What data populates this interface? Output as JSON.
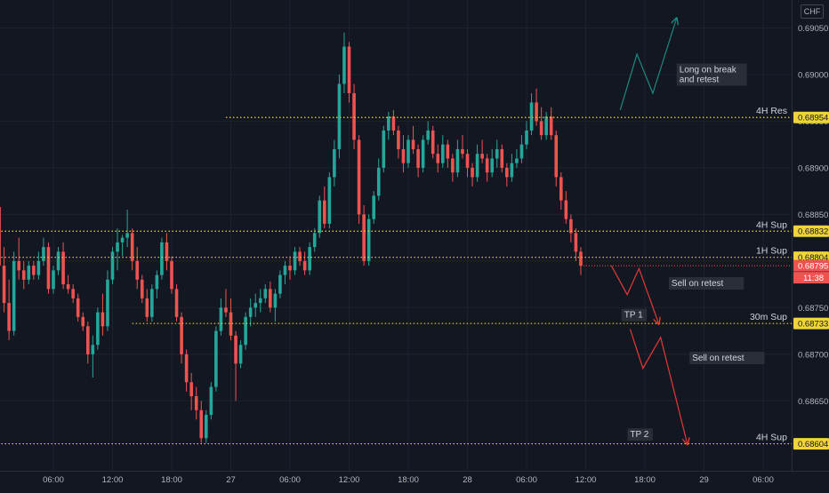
{
  "currency": "CHF",
  "chart_data": {
    "type": "candlestick",
    "symbol_currency": "CHF",
    "ylim": [
      0.68575,
      0.6908
    ],
    "price_ticks": [
      "0.69050",
      "0.69000",
      "0.68950",
      "0.68900",
      "0.68850",
      "0.68800",
      "0.68750",
      "0.68700",
      "0.68650"
    ],
    "time_ticks": [
      {
        "label": "06:00",
        "h": 6
      },
      {
        "label": "12:00",
        "h": 12
      },
      {
        "label": "18:00",
        "h": 18
      },
      {
        "label": "27",
        "h": 24
      },
      {
        "label": "06:00",
        "h": 30
      },
      {
        "label": "12:00",
        "h": 36
      },
      {
        "label": "18:00",
        "h": 42
      },
      {
        "label": "28",
        "h": 48
      },
      {
        "label": "06:00",
        "h": 54
      },
      {
        "label": "12:00",
        "h": 60
      },
      {
        "label": "18:00",
        "h": 66
      },
      {
        "label": "29",
        "h": 72
      },
      {
        "label": "06:00",
        "h": 78
      }
    ],
    "levels": [
      {
        "label": "4H Res",
        "price": 0.68954,
        "tag": "0.68954",
        "from_h": 23.5
      },
      {
        "label": "4H Sup",
        "price": 0.68832,
        "tag": "0.68832",
        "from_h": 0
      },
      {
        "label": "1H Sup",
        "price": 0.68804,
        "tag": "0.68804",
        "from_h": 0
      },
      {
        "label": "30m Sup",
        "price": 0.68733,
        "tag": "0.68733",
        "from_h": 14
      },
      {
        "label": "4H Sup",
        "price": 0.68604,
        "tag": "0.68604",
        "from_h": 0
      }
    ],
    "last_price": {
      "value": "0.68795",
      "price": 0.68795,
      "countdown": "11:38"
    },
    "annotations": [
      {
        "text": [
          "Long on break",
          "and retest"
        ],
        "h": 69.5,
        "price": 0.69
      },
      {
        "text": [
          "Sell on retest"
        ],
        "h": 68.7,
        "price": 0.68776
      },
      {
        "text": [
          "TP 1"
        ],
        "h": 63.9,
        "price": 0.68742
      },
      {
        "text": [
          "Sell on retest"
        ],
        "h": 70.8,
        "price": 0.68696
      },
      {
        "text": [
          "TP 2"
        ],
        "h": 64.5,
        "price": 0.68614
      }
    ],
    "paths": [
      {
        "color": "#1d8a80",
        "arrow": true,
        "points": [
          [
            63.5,
            0.68962
          ],
          [
            65.2,
            0.69022
          ],
          [
            66.8,
            0.6898
          ],
          [
            69.2,
            0.6906
          ]
        ]
      },
      {
        "color": "#e53935",
        "arrow": true,
        "points": [
          [
            62.6,
            0.68795
          ],
          [
            64.2,
            0.68764
          ],
          [
            65.4,
            0.68792
          ],
          [
            67.4,
            0.68733
          ]
        ]
      },
      {
        "color": "#e53935",
        "arrow": true,
        "points": [
          [
            64.5,
            0.68727
          ],
          [
            65.8,
            0.68685
          ],
          [
            67.6,
            0.68718
          ],
          [
            70.3,
            0.68604
          ]
        ]
      }
    ],
    "candles_start_h": 0.5,
    "candles_step_h": 0.5,
    "candles": [
      [
        0.68858,
        0.68862,
        0.68785,
        0.68795
      ],
      [
        0.68795,
        0.68815,
        0.68745,
        0.68755
      ],
      [
        0.68755,
        0.6878,
        0.68715,
        0.68725
      ],
      [
        0.68725,
        0.6881,
        0.6872,
        0.688
      ],
      [
        0.688,
        0.68825,
        0.6878,
        0.6879
      ],
      [
        0.6879,
        0.688,
        0.6877,
        0.6878
      ],
      [
        0.6878,
        0.688,
        0.68775,
        0.68795
      ],
      [
        0.68795,
        0.688,
        0.6878,
        0.68785
      ],
      [
        0.68785,
        0.6881,
        0.6878,
        0.688
      ],
      [
        0.688,
        0.68825,
        0.68795,
        0.68815
      ],
      [
        0.68815,
        0.6882,
        0.68765,
        0.6877
      ],
      [
        0.6877,
        0.68795,
        0.68765,
        0.6879
      ],
      [
        0.6879,
        0.68815,
        0.68785,
        0.6881
      ],
      [
        0.6881,
        0.6882,
        0.6877,
        0.68775
      ],
      [
        0.68775,
        0.68785,
        0.68765,
        0.6877
      ],
      [
        0.6877,
        0.68775,
        0.68755,
        0.6876
      ],
      [
        0.6876,
        0.68765,
        0.68735,
        0.6874
      ],
      [
        0.6874,
        0.68745,
        0.68725,
        0.6873
      ],
      [
        0.6873,
        0.68735,
        0.6869,
        0.687
      ],
      [
        0.687,
        0.6872,
        0.68675,
        0.6871
      ],
      [
        0.6871,
        0.6875,
        0.68705,
        0.68745
      ],
      [
        0.68745,
        0.68765,
        0.6872,
        0.6873
      ],
      [
        0.6873,
        0.6879,
        0.68725,
        0.6878
      ],
      [
        0.6878,
        0.68815,
        0.68775,
        0.6881
      ],
      [
        0.6881,
        0.68835,
        0.6879,
        0.6882
      ],
      [
        0.6882,
        0.68828,
        0.68805,
        0.68825
      ],
      [
        0.68825,
        0.68855,
        0.68815,
        0.6883
      ],
      [
        0.6883,
        0.68835,
        0.6879,
        0.688
      ],
      [
        0.688,
        0.68815,
        0.6877,
        0.6878
      ],
      [
        0.6878,
        0.68785,
        0.68755,
        0.6876
      ],
      [
        0.6876,
        0.6877,
        0.68735,
        0.6874
      ],
      [
        0.6874,
        0.68775,
        0.68735,
        0.6877
      ],
      [
        0.6877,
        0.6879,
        0.6876,
        0.68785
      ],
      [
        0.68785,
        0.68825,
        0.6878,
        0.6882
      ],
      [
        0.6882,
        0.6883,
        0.6879,
        0.688
      ],
      [
        0.688,
        0.68805,
        0.68765,
        0.6877
      ],
      [
        0.6877,
        0.68775,
        0.68735,
        0.6874
      ],
      [
        0.6874,
        0.68745,
        0.6869,
        0.687
      ],
      [
        0.687,
        0.68705,
        0.6866,
        0.6867
      ],
      [
        0.6867,
        0.6868,
        0.6864,
        0.68655
      ],
      [
        0.68655,
        0.68665,
        0.6863,
        0.6864
      ],
      [
        0.6864,
        0.6865,
        0.68605,
        0.6861
      ],
      [
        0.6861,
        0.6864,
        0.68605,
        0.68635
      ],
      [
        0.68635,
        0.6867,
        0.6863,
        0.68665
      ],
      [
        0.68665,
        0.6873,
        0.6866,
        0.68725
      ],
      [
        0.68725,
        0.6876,
        0.6872,
        0.6875
      ],
      [
        0.6875,
        0.6877,
        0.6874,
        0.68745
      ],
      [
        0.68745,
        0.6876,
        0.68715,
        0.6872
      ],
      [
        0.6872,
        0.68725,
        0.6865,
        0.6869
      ],
      [
        0.6869,
        0.68715,
        0.68685,
        0.6871
      ],
      [
        0.6871,
        0.68745,
        0.68705,
        0.6874
      ],
      [
        0.6874,
        0.6876,
        0.6873,
        0.6875
      ],
      [
        0.6875,
        0.68765,
        0.6874,
        0.68755
      ],
      [
        0.68755,
        0.6877,
        0.68745,
        0.6876
      ],
      [
        0.6876,
        0.68775,
        0.68755,
        0.6877
      ],
      [
        0.6877,
        0.68778,
        0.68745,
        0.6875
      ],
      [
        0.6875,
        0.6877,
        0.68735,
        0.68765
      ],
      [
        0.68765,
        0.6879,
        0.6876,
        0.68785
      ],
      [
        0.68785,
        0.688,
        0.68775,
        0.68795
      ],
      [
        0.68795,
        0.68805,
        0.6878,
        0.6879
      ],
      [
        0.6879,
        0.68815,
        0.68785,
        0.6881
      ],
      [
        0.6881,
        0.68815,
        0.68795,
        0.688
      ],
      [
        0.688,
        0.6881,
        0.68785,
        0.6879
      ],
      [
        0.6879,
        0.6882,
        0.68785,
        0.68815
      ],
      [
        0.68815,
        0.68835,
        0.6881,
        0.6883
      ],
      [
        0.6883,
        0.6887,
        0.68825,
        0.68865
      ],
      [
        0.68865,
        0.6888,
        0.68835,
        0.6884
      ],
      [
        0.6884,
        0.68895,
        0.68835,
        0.6889
      ],
      [
        0.6889,
        0.6893,
        0.6888,
        0.6892
      ],
      [
        0.6892,
        0.69,
        0.6891,
        0.6899
      ],
      [
        0.6899,
        0.69045,
        0.6898,
        0.6903
      ],
      [
        0.6903,
        0.69035,
        0.6897,
        0.6898
      ],
      [
        0.6898,
        0.6899,
        0.6892,
        0.6893
      ],
      [
        0.6893,
        0.68935,
        0.6884,
        0.6885
      ],
      [
        0.6885,
        0.6886,
        0.68795,
        0.688
      ],
      [
        0.688,
        0.6885,
        0.68795,
        0.68845
      ],
      [
        0.68845,
        0.68875,
        0.6884,
        0.6887
      ],
      [
        0.6887,
        0.6891,
        0.68865,
        0.689
      ],
      [
        0.689,
        0.68945,
        0.68895,
        0.6894
      ],
      [
        0.6894,
        0.6896,
        0.6893,
        0.68955
      ],
      [
        0.68955,
        0.68962,
        0.68935,
        0.6894
      ],
      [
        0.6894,
        0.68945,
        0.6891,
        0.6892
      ],
      [
        0.6892,
        0.68935,
        0.68895,
        0.68905
      ],
      [
        0.68905,
        0.68935,
        0.689,
        0.6893
      ],
      [
        0.6893,
        0.68945,
        0.68915,
        0.6892
      ],
      [
        0.6892,
        0.68925,
        0.6889,
        0.689
      ],
      [
        0.689,
        0.68935,
        0.68895,
        0.6893
      ],
      [
        0.6893,
        0.6895,
        0.68925,
        0.6894
      ],
      [
        0.6894,
        0.68945,
        0.6891,
        0.68915
      ],
      [
        0.68915,
        0.68925,
        0.68895,
        0.68905
      ],
      [
        0.68905,
        0.68935,
        0.689,
        0.68925
      ],
      [
        0.68925,
        0.6893,
        0.689,
        0.6891
      ],
      [
        0.6891,
        0.68915,
        0.68885,
        0.68895
      ],
      [
        0.68895,
        0.6893,
        0.6889,
        0.6892
      ],
      [
        0.6892,
        0.68935,
        0.6891,
        0.68915
      ],
      [
        0.68915,
        0.6892,
        0.6889,
        0.689
      ],
      [
        0.689,
        0.68905,
        0.6888,
        0.6889
      ],
      [
        0.6889,
        0.68925,
        0.68885,
        0.68915
      ],
      [
        0.68915,
        0.6893,
        0.68905,
        0.6891
      ],
      [
        0.6891,
        0.68915,
        0.68885,
        0.68895
      ],
      [
        0.68895,
        0.6892,
        0.6889,
        0.6891
      ],
      [
        0.6891,
        0.6893,
        0.689,
        0.6892
      ],
      [
        0.6892,
        0.68925,
        0.68895,
        0.689
      ],
      [
        0.689,
        0.68905,
        0.6888,
        0.6889
      ],
      [
        0.6889,
        0.68915,
        0.68885,
        0.68905
      ],
      [
        0.68905,
        0.6892,
        0.689,
        0.6891
      ],
      [
        0.6891,
        0.68935,
        0.68905,
        0.68925
      ],
      [
        0.68925,
        0.6895,
        0.6892,
        0.6894
      ],
      [
        0.6894,
        0.6898,
        0.68935,
        0.6897
      ],
      [
        0.6897,
        0.68985,
        0.68945,
        0.6895
      ],
      [
        0.6895,
        0.68965,
        0.6893,
        0.68935
      ],
      [
        0.68935,
        0.6896,
        0.6893,
        0.68955
      ],
      [
        0.68955,
        0.68965,
        0.6893,
        0.68935
      ],
      [
        0.68935,
        0.6894,
        0.6888,
        0.6889
      ],
      [
        0.6889,
        0.68895,
        0.68855,
        0.68865
      ],
      [
        0.68865,
        0.68875,
        0.6884,
        0.68845
      ],
      [
        0.68845,
        0.6885,
        0.6882,
        0.6883
      ],
      [
        0.6883,
        0.68835,
        0.688,
        0.6881
      ],
      [
        0.6881,
        0.68815,
        0.68785,
        0.68795
      ]
    ]
  }
}
